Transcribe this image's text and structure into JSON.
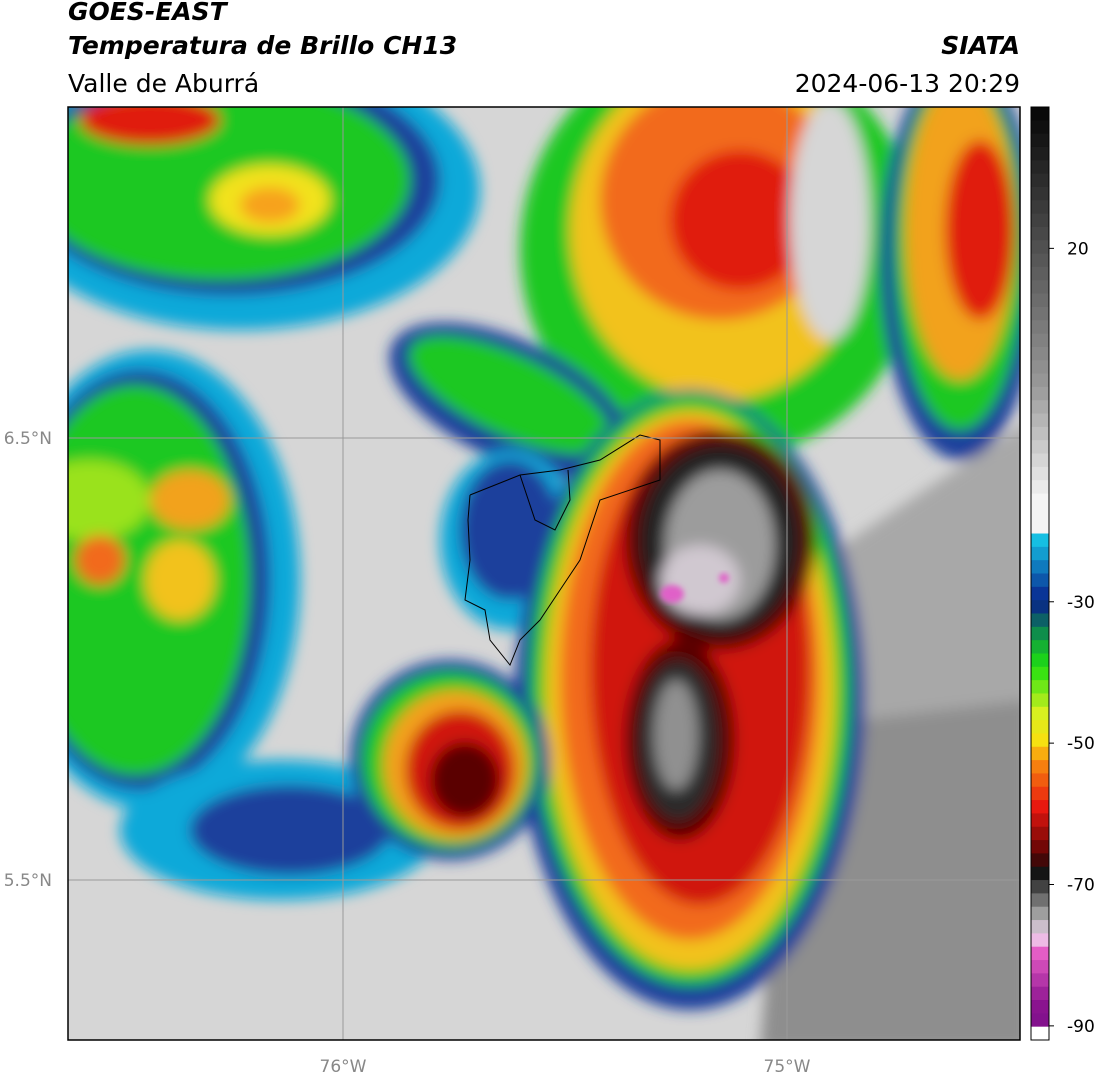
{
  "header": {
    "title": "GOES-EAST",
    "subtitle": "Temperatura de Brillo CH13",
    "source": "SIATA",
    "region": "Valle de Aburrá",
    "datetime": "2024-06-13 20:29"
  },
  "map": {
    "lat_labels": [
      "6.5°N",
      "5.5°N"
    ],
    "lon_labels": [
      "76°W",
      "75°W"
    ]
  },
  "colorbar": {
    "lim": [
      -92,
      40
    ],
    "ticks": [
      20,
      -30,
      -50,
      -70,
      -90
    ]
  }
}
